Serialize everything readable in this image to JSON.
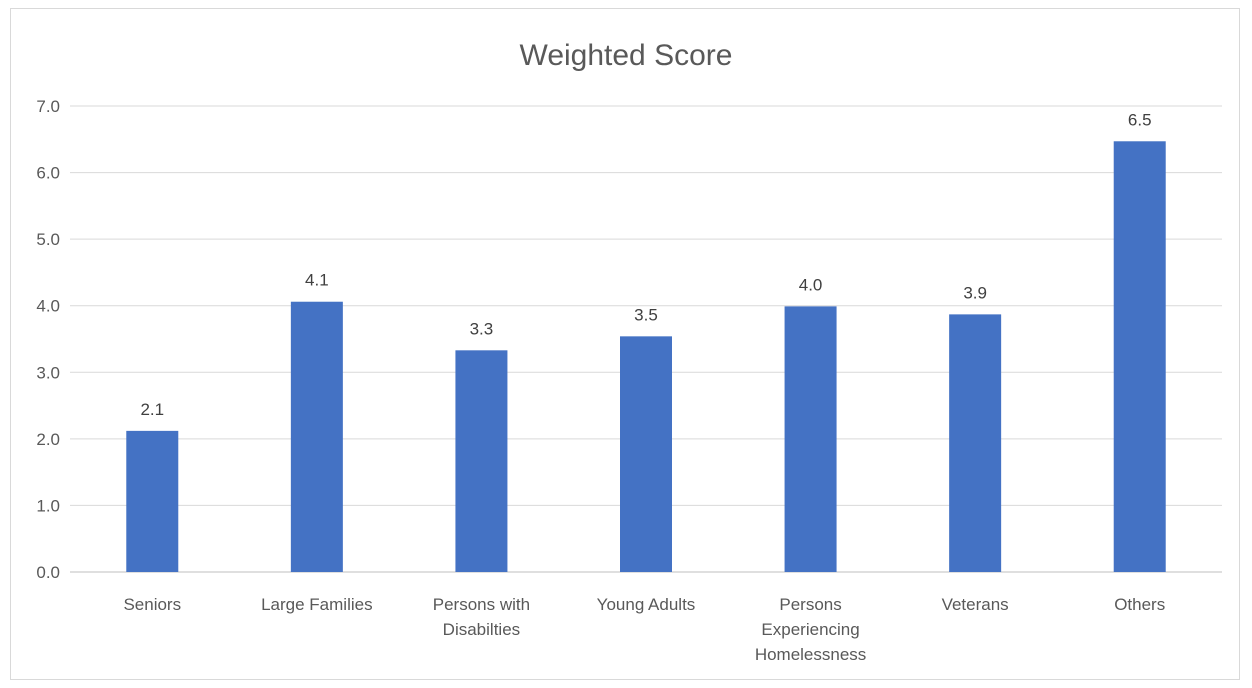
{
  "chart_data": {
    "type": "bar",
    "title": "Weighted Score",
    "categories": [
      [
        "Seniors"
      ],
      [
        "Large Families"
      ],
      [
        "Persons with",
        "Disabilties"
      ],
      [
        "Young Adults"
      ],
      [
        "Persons",
        "Experiencing",
        "Homelessness"
      ],
      [
        "Veterans"
      ],
      [
        "Others"
      ]
    ],
    "values": [
      2.12,
      4.06,
      3.33,
      3.54,
      3.99,
      3.87,
      6.47
    ],
    "data_labels": [
      "2.1",
      "4.1",
      "3.3",
      "3.5",
      "4.0",
      "3.9",
      "6.5"
    ],
    "ylim": [
      0,
      7
    ],
    "yticks": [
      "0.0",
      "1.0",
      "2.0",
      "3.0",
      "4.0",
      "5.0",
      "6.0",
      "7.0"
    ],
    "grid": true,
    "colors": {
      "bar": "#4472C4",
      "grid": "#d9d9d9",
      "text": "#595959"
    }
  }
}
